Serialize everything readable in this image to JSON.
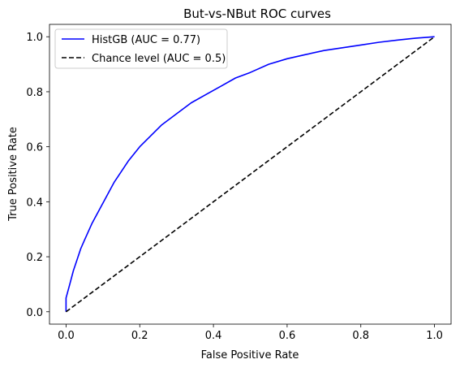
{
  "chart_data": {
    "type": "line",
    "title": "But-vs-NBut ROC curves",
    "xlabel": "False Positive Rate",
    "ylabel": "True Positive Rate",
    "xlim": [
      -0.045,
      1.045
    ],
    "ylim": [
      -0.045,
      1.045
    ],
    "xticks": [
      0.0,
      0.2,
      0.4,
      0.6,
      0.8,
      1.0
    ],
    "yticks": [
      0.0,
      0.2,
      0.4,
      0.6,
      0.8,
      1.0
    ],
    "xtick_labels": [
      "0.0",
      "0.2",
      "0.4",
      "0.6",
      "0.8",
      "1.0"
    ],
    "ytick_labels": [
      "0.0",
      "0.2",
      "0.4",
      "0.6",
      "0.8",
      "1.0"
    ],
    "grid": false,
    "legend_position": "upper-left",
    "series": [
      {
        "name": "HistGB (AUC = 0.77)",
        "color": "#0000ff",
        "style": "solid",
        "x": [
          0.0,
          0.0,
          0.01,
          0.02,
          0.03,
          0.04,
          0.05,
          0.07,
          0.09,
          0.11,
          0.13,
          0.15,
          0.17,
          0.2,
          0.23,
          0.26,
          0.3,
          0.34,
          0.38,
          0.42,
          0.46,
          0.5,
          0.55,
          0.6,
          0.65,
          0.7,
          0.75,
          0.8,
          0.85,
          0.9,
          0.95,
          0.98,
          1.0
        ],
        "y": [
          0.0,
          0.05,
          0.1,
          0.15,
          0.19,
          0.23,
          0.26,
          0.32,
          0.37,
          0.42,
          0.47,
          0.51,
          0.55,
          0.6,
          0.64,
          0.68,
          0.72,
          0.76,
          0.79,
          0.82,
          0.85,
          0.87,
          0.9,
          0.92,
          0.935,
          0.95,
          0.96,
          0.97,
          0.98,
          0.988,
          0.995,
          0.998,
          1.0
        ]
      },
      {
        "name": "Chance level (AUC = 0.5)",
        "color": "#000000",
        "style": "dashed",
        "x": [
          0.0,
          1.0
        ],
        "y": [
          0.0,
          1.0
        ]
      }
    ]
  }
}
